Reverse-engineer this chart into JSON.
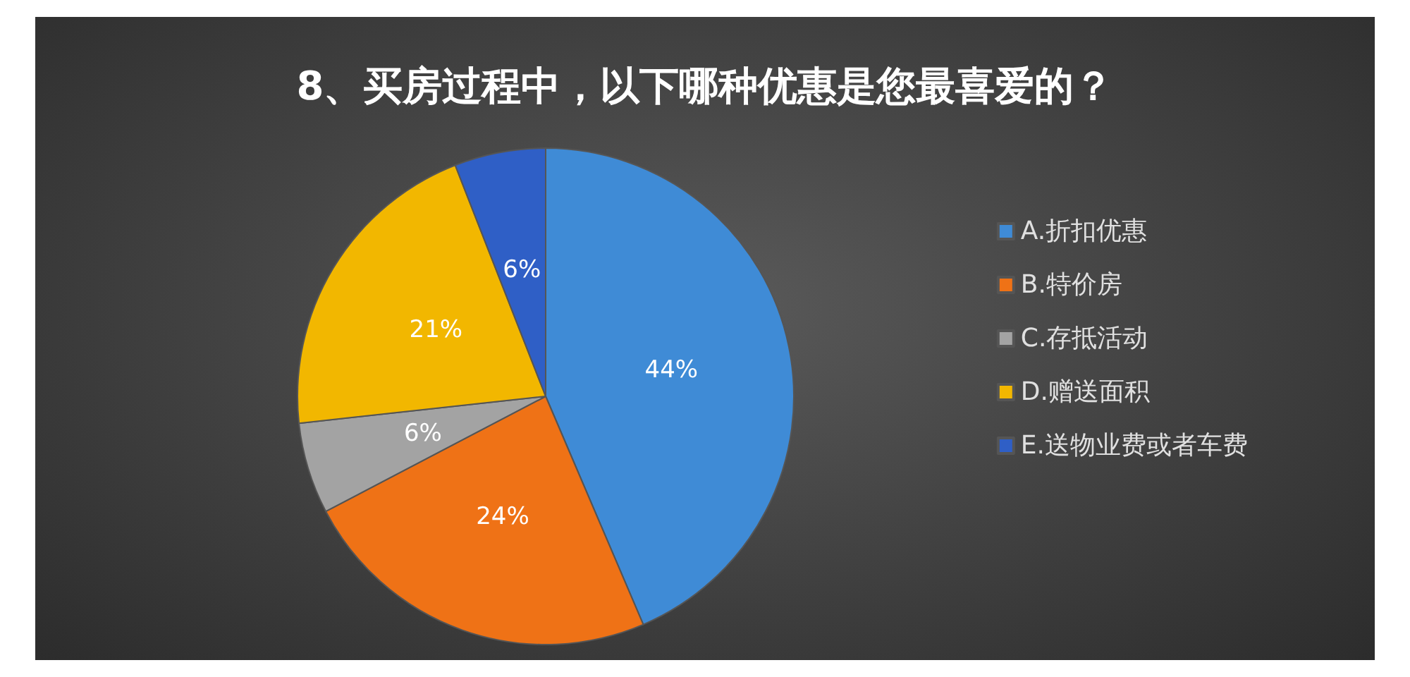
{
  "chart_data": {
    "type": "pie",
    "title": "8、买房过程中，以下哪种优惠是您最喜爱的？",
    "categories": [
      "A.折扣优惠",
      "B.特价房",
      "C.存抵活动",
      "D.赠送面积",
      "E.送物业费或者车费"
    ],
    "values": [
      44,
      24,
      6,
      21,
      6
    ],
    "value_labels": [
      "44%",
      "24%",
      "6%",
      "21%",
      "6%"
    ],
    "colors": [
      "#3f8bd6",
      "#ef7216",
      "#a3a3a3",
      "#f2b700",
      "#2f5fc6"
    ],
    "legend": "right"
  }
}
